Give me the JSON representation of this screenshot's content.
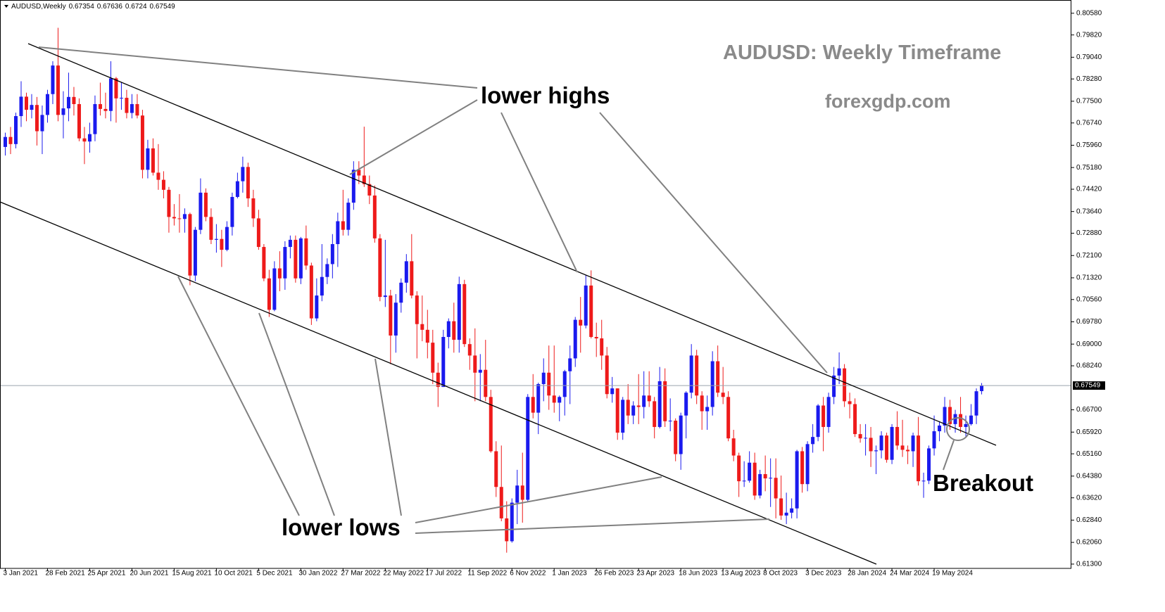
{
  "chart_data": {
    "type": "candlestick",
    "symbol": "AUDUSD,Weekly",
    "title": "AUDUSD: Weekly Timeframe",
    "subtitle": "forexgdp.com",
    "annotations": [
      "lower highs",
      "lower lows",
      "Breakout"
    ],
    "up_color": "#1a1aee",
    "down_color": "#ee1a1a",
    "last_price_line": true,
    "xlim": [
      -1,
      202
    ],
    "xticks": [
      {
        "value": 0,
        "label": "3 Jan 2021"
      },
      {
        "value": 8,
        "label": "28 Feb 2021"
      },
      {
        "value": 16,
        "label": "25 Apr 2021"
      },
      {
        "value": 24,
        "label": "20 Jun 2021"
      },
      {
        "value": 32,
        "label": "15 Aug 2021"
      },
      {
        "value": 40,
        "label": "10 Oct 2021"
      },
      {
        "value": 48,
        "label": "5 Dec 2021"
      },
      {
        "value": 56,
        "label": "30 Jan 2022"
      },
      {
        "value": 64,
        "label": "27 Mar 2022"
      },
      {
        "value": 72,
        "label": "22 May 2022"
      },
      {
        "value": 80,
        "label": "17 Jul 2022"
      },
      {
        "value": 88,
        "label": "11 Sep 2022"
      },
      {
        "value": 96,
        "label": "6 Nov 2022"
      },
      {
        "value": 104,
        "label": "1 Jan 2023"
      },
      {
        "value": 112,
        "label": "26 Feb 2023"
      },
      {
        "value": 120,
        "label": "23 Apr 2023"
      },
      {
        "value": 128,
        "label": "18 Jun 2023"
      },
      {
        "value": 136,
        "label": "13 Aug 2023"
      },
      {
        "value": 144,
        "label": "8 Oct 2023"
      },
      {
        "value": 152,
        "label": "3 Dec 2023"
      },
      {
        "value": 160,
        "label": "28 Jan 2024"
      },
      {
        "value": 168,
        "label": "24 Mar 2024"
      },
      {
        "value": 176,
        "label": "19 May 2024"
      }
    ],
    "ylim": [
      0.6115,
      0.8092
    ],
    "yticks": [
      {
        "value": 0.8058,
        "label": "0.80580"
      },
      {
        "value": 0.7982,
        "label": "0.79820"
      },
      {
        "value": 0.7904,
        "label": "0.79040"
      },
      {
        "value": 0.7828,
        "label": "0.78280"
      },
      {
        "value": 0.775,
        "label": "0.77500"
      },
      {
        "value": 0.7674,
        "label": "0.76740"
      },
      {
        "value": 0.7596,
        "label": "0.75960"
      },
      {
        "value": 0.7518,
        "label": "0.75180"
      },
      {
        "value": 0.7442,
        "label": "0.74420"
      },
      {
        "value": 0.7364,
        "label": "0.73640"
      },
      {
        "value": 0.7288,
        "label": "0.72880"
      },
      {
        "value": 0.721,
        "label": "0.72100"
      },
      {
        "value": 0.7132,
        "label": "0.71320"
      },
      {
        "value": 0.7056,
        "label": "0.70560"
      },
      {
        "value": 0.6978,
        "label": "0.69780"
      },
      {
        "value": 0.69,
        "label": "0.69000"
      },
      {
        "value": 0.6824,
        "label": "0.68240"
      },
      {
        "value": 0.667,
        "label": "0.66700"
      },
      {
        "value": 0.6592,
        "label": "0.65920"
      },
      {
        "value": 0.6516,
        "label": "0.65160"
      },
      {
        "value": 0.6438,
        "label": "0.64380"
      },
      {
        "value": 0.6362,
        "label": "0.63620"
      },
      {
        "value": 0.6284,
        "label": "0.62840"
      },
      {
        "value": 0.6206,
        "label": "0.62060"
      },
      {
        "value": 0.613,
        "label": "0.61300"
      }
    ],
    "open": [
      0.759,
      0.7625,
      0.76,
      0.7698,
      0.7766,
      0.772,
      0.7737,
      0.7645,
      0.7702,
      0.7775,
      0.7875,
      0.7702,
      0.7725,
      0.7765,
      0.774,
      0.762,
      0.7609,
      0.7635,
      0.774,
      0.7723,
      0.7716,
      0.783,
      0.776,
      0.7762,
      0.7709,
      0.774,
      0.77,
      0.751,
      0.7585,
      0.75,
      0.7475,
      0.744,
      0.7345,
      0.734,
      0.7338,
      0.7355,
      0.714,
      0.73,
      0.743,
      0.7345,
      0.7265,
      0.7268,
      0.723,
      0.731,
      0.7415,
      0.747,
      0.752,
      0.741,
      0.734,
      0.724,
      0.713,
      0.702,
      0.7165,
      0.713,
      0.724,
      0.7265,
      0.713,
      0.727,
      0.7175,
      0.699,
      0.707,
      0.7135,
      0.718,
      0.725,
      0.733,
      0.73,
      0.7395,
      0.751,
      0.749,
      0.746,
      0.742,
      0.727,
      0.7065,
      0.707,
      0.693,
      0.7045,
      0.7115,
      0.719,
      0.707,
      0.697,
      0.695,
      0.6905,
      0.68,
      0.675,
      0.6925,
      0.698,
      0.6915,
      0.711,
      0.69,
      0.686,
      0.68,
      0.681,
      0.6715,
      0.6525,
      0.64,
      0.629,
      0.621,
      0.6345,
      0.6405,
      0.6355,
      0.6715,
      0.666,
      0.676,
      0.68,
      0.672,
      0.6695,
      0.6715,
      0.6805,
      0.685,
      0.6985,
      0.6965,
      0.7105,
      0.6925,
      0.692,
      0.686,
      0.6725,
      0.6745,
      0.659,
      0.6705,
      0.665,
      0.6685,
      0.668,
      0.672,
      0.67,
      0.661,
      0.677,
      0.663,
      0.6632,
      0.6515,
      0.665,
      0.673,
      0.686,
      0.672,
      0.6665,
      0.668,
      0.684,
      0.673,
      0.6715,
      0.657,
      0.651,
      0.642,
      0.6422,
      0.6485,
      0.637,
      0.6445,
      0.643,
      0.6432,
      0.636,
      0.63,
      0.631,
      0.6325,
      0.6525,
      0.641,
      0.655,
      0.6575,
      0.6685,
      0.661,
      0.6715,
      0.679,
      0.6815,
      0.67,
      0.669,
      0.6585,
      0.657,
      0.6572,
      0.6525,
      0.6528,
      0.658,
      0.6495,
      0.661,
      0.6545,
      0.653,
      0.6525,
      0.658,
      0.642,
      0.6422,
      0.6535,
      0.6595,
      0.6615,
      0.668,
      0.662,
      0.6655,
      0.661,
      0.662,
      0.665,
      0.67354
    ],
    "high": [
      0.764,
      0.766,
      0.771,
      0.782,
      0.778,
      0.7775,
      0.7765,
      0.7735,
      0.779,
      0.789,
      0.8007,
      0.7785,
      0.785,
      0.78,
      0.776,
      0.766,
      0.7675,
      0.777,
      0.7815,
      0.778,
      0.789,
      0.7835,
      0.7815,
      0.779,
      0.7775,
      0.7775,
      0.772,
      0.7615,
      0.762,
      0.76,
      0.7505,
      0.745,
      0.739,
      0.7425,
      0.7375,
      0.736,
      0.731,
      0.748,
      0.7445,
      0.7375,
      0.732,
      0.73,
      0.733,
      0.743,
      0.75,
      0.7556,
      0.7535,
      0.744,
      0.737,
      0.725,
      0.716,
      0.719,
      0.7225,
      0.726,
      0.728,
      0.728,
      0.7275,
      0.7315,
      0.7185,
      0.713,
      0.725,
      0.72,
      0.7285,
      0.736,
      0.744,
      0.741,
      0.754,
      0.754,
      0.7661,
      0.749,
      0.7455,
      0.7285,
      0.7265,
      0.709,
      0.7075,
      0.713,
      0.7215,
      0.7285,
      0.7085,
      0.707,
      0.702,
      0.695,
      0.6835,
      0.695,
      0.699,
      0.7045,
      0.7136,
      0.7125,
      0.692,
      0.6955,
      0.6865,
      0.6915,
      0.674,
      0.656,
      0.6545,
      0.635,
      0.636,
      0.646,
      0.652,
      0.6725,
      0.6795,
      0.6765,
      0.685,
      0.6895,
      0.6895,
      0.672,
      0.681,
      0.6895,
      0.6995,
      0.7065,
      0.7142,
      0.7158,
      0.6975,
      0.6985,
      0.689,
      0.6785,
      0.6745,
      0.6715,
      0.676,
      0.67,
      0.6795,
      0.6805,
      0.6805,
      0.6715,
      0.682,
      0.6815,
      0.671,
      0.664,
      0.666,
      0.6735,
      0.69,
      0.688,
      0.6735,
      0.672,
      0.6875,
      0.6895,
      0.682,
      0.6735,
      0.66,
      0.652,
      0.649,
      0.6525,
      0.652,
      0.646,
      0.651,
      0.65,
      0.65,
      0.644,
      0.638,
      0.636,
      0.653,
      0.654,
      0.656,
      0.662,
      0.669,
      0.6715,
      0.673,
      0.682,
      0.6871,
      0.683,
      0.673,
      0.671,
      0.662,
      0.662,
      0.661,
      0.6545,
      0.6595,
      0.659,
      0.662,
      0.6665,
      0.6635,
      0.6545,
      0.659,
      0.6645,
      0.645,
      0.6545,
      0.665,
      0.663,
      0.6715,
      0.6705,
      0.667,
      0.6715,
      0.665,
      0.669,
      0.6745,
      0.67636
    ],
    "low": [
      0.756,
      0.7565,
      0.7585,
      0.766,
      0.768,
      0.769,
      0.7595,
      0.7565,
      0.7675,
      0.774,
      0.768,
      0.762,
      0.768,
      0.77,
      0.761,
      0.753,
      0.757,
      0.761,
      0.77,
      0.769,
      0.768,
      0.7675,
      0.772,
      0.769,
      0.769,
      0.769,
      0.748,
      0.748,
      0.749,
      0.744,
      0.741,
      0.729,
      0.7315,
      0.729,
      0.729,
      0.7106,
      0.712,
      0.7285,
      0.733,
      0.725,
      0.722,
      0.717,
      0.7225,
      0.728,
      0.741,
      0.743,
      0.738,
      0.731,
      0.723,
      0.712,
      0.6995,
      0.7015,
      0.7085,
      0.709,
      0.72,
      0.7115,
      0.711,
      0.716,
      0.6967,
      0.698,
      0.705,
      0.711,
      0.713,
      0.717,
      0.728,
      0.728,
      0.737,
      0.746,
      0.745,
      0.739,
      0.7255,
      0.705,
      0.703,
      0.683,
      0.687,
      0.701,
      0.708,
      0.706,
      0.685,
      0.691,
      0.685,
      0.676,
      0.668,
      0.675,
      0.6885,
      0.687,
      0.687,
      0.689,
      0.681,
      0.67,
      0.67,
      0.67,
      0.652,
      0.6365,
      0.628,
      0.617,
      0.6205,
      0.627,
      0.6275,
      0.635,
      0.664,
      0.6585,
      0.67,
      0.667,
      0.666,
      0.663,
      0.665,
      0.669,
      0.682,
      0.687,
      0.6955,
      0.692,
      0.6855,
      0.681,
      0.671,
      0.6695,
      0.6565,
      0.6565,
      0.662,
      0.662,
      0.662,
      0.664,
      0.668,
      0.657,
      0.6605,
      0.661,
      0.6595,
      0.649,
      0.646,
      0.657,
      0.671,
      0.669,
      0.66,
      0.66,
      0.665,
      0.6715,
      0.669,
      0.656,
      0.649,
      0.6365,
      0.64,
      0.6415,
      0.6355,
      0.636,
      0.6385,
      0.633,
      0.629,
      0.6285,
      0.627,
      0.629,
      0.629,
      0.638,
      0.6385,
      0.652,
      0.656,
      0.6525,
      0.659,
      0.669,
      0.676,
      0.668,
      0.664,
      0.6575,
      0.6555,
      0.651,
      0.647,
      0.6445,
      0.65,
      0.6485,
      0.648,
      0.653,
      0.6505,
      0.648,
      0.647,
      0.6405,
      0.6362,
      0.641,
      0.651,
      0.656,
      0.659,
      0.66,
      0.659,
      0.659,
      0.6575,
      0.6615,
      0.662,
      0.6724
    ],
    "close": [
      0.7625,
      0.76,
      0.7698,
      0.7766,
      0.772,
      0.7737,
      0.7645,
      0.7702,
      0.7775,
      0.7875,
      0.7702,
      0.7725,
      0.7765,
      0.774,
      0.762,
      0.7609,
      0.7635,
      0.774,
      0.7723,
      0.7716,
      0.783,
      0.776,
      0.7762,
      0.7709,
      0.774,
      0.77,
      0.751,
      0.7585,
      0.75,
      0.7475,
      0.744,
      0.7345,
      0.734,
      0.7338,
      0.7355,
      0.714,
      0.73,
      0.743,
      0.7345,
      0.7265,
      0.7268,
      0.723,
      0.731,
      0.7415,
      0.747,
      0.752,
      0.741,
      0.734,
      0.724,
      0.713,
      0.702,
      0.7165,
      0.713,
      0.724,
      0.7265,
      0.713,
      0.727,
      0.7175,
      0.699,
      0.707,
      0.7135,
      0.718,
      0.725,
      0.733,
      0.73,
      0.7395,
      0.751,
      0.749,
      0.746,
      0.742,
      0.727,
      0.7065,
      0.707,
      0.693,
      0.7045,
      0.7115,
      0.719,
      0.707,
      0.697,
      0.695,
      0.6905,
      0.68,
      0.675,
      0.6925,
      0.698,
      0.6915,
      0.711,
      0.69,
      0.686,
      0.68,
      0.681,
      0.6715,
      0.6525,
      0.64,
      0.629,
      0.621,
      0.6345,
      0.6405,
      0.6355,
      0.6715,
      0.666,
      0.676,
      0.68,
      0.672,
      0.6695,
      0.6715,
      0.6805,
      0.685,
      0.6985,
      0.6965,
      0.7105,
      0.6925,
      0.692,
      0.686,
      0.6725,
      0.6745,
      0.659,
      0.6705,
      0.665,
      0.6685,
      0.668,
      0.672,
      0.67,
      0.661,
      0.677,
      0.663,
      0.6632,
      0.6515,
      0.665,
      0.673,
      0.686,
      0.672,
      0.6665,
      0.668,
      0.684,
      0.673,
      0.6715,
      0.657,
      0.651,
      0.642,
      0.6422,
      0.6485,
      0.637,
      0.6445,
      0.643,
      0.6432,
      0.636,
      0.63,
      0.631,
      0.6325,
      0.6525,
      0.641,
      0.655,
      0.6575,
      0.6685,
      0.661,
      0.6715,
      0.679,
      0.6815,
      0.67,
      0.669,
      0.6585,
      0.657,
      0.6572,
      0.6525,
      0.6528,
      0.658,
      0.6495,
      0.661,
      0.6545,
      0.653,
      0.6525,
      0.658,
      0.642,
      0.6422,
      0.6535,
      0.6595,
      0.6615,
      0.668,
      0.662,
      0.6655,
      0.661,
      0.662,
      0.665,
      0.6735,
      0.67549
    ]
  }
}
